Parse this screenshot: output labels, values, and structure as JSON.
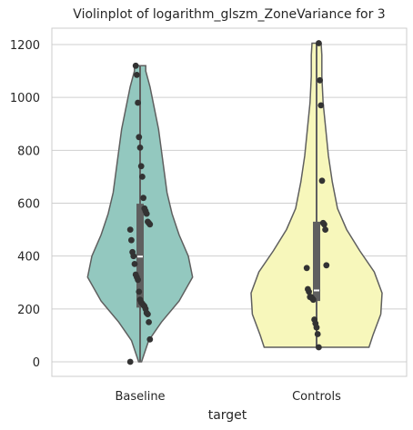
{
  "chart_data": {
    "type": "violin",
    "title": "Violinplot of logarithm_glszm_ZoneVariance for 3",
    "xlabel": "target",
    "ylabel": "",
    "categories": [
      "Baseline",
      "Controls"
    ],
    "ylim": [
      -55,
      1265
    ],
    "yticks": [
      0,
      200,
      400,
      600,
      800,
      1000,
      1200
    ],
    "grid": "horizontal",
    "colors": {
      "Baseline": "#93c8bf",
      "Controls": "#f7f7bb",
      "outline": "#5f5f5f",
      "points": "#333333",
      "box": "#5f5f5f",
      "median": "#ffffff",
      "grid": "#cfcfcf",
      "axes": "#cccccc"
    },
    "groups": [
      {
        "name": "Baseline",
        "min": 0,
        "max": 1120,
        "q1": 205,
        "median": 398,
        "q3": 598,
        "density": [
          [
            0,
            0.02
          ],
          [
            80,
            0.12
          ],
          [
            150,
            0.3
          ],
          [
            230,
            0.55
          ],
          [
            320,
            0.74
          ],
          [
            400,
            0.68
          ],
          [
            480,
            0.55
          ],
          [
            560,
            0.45
          ],
          [
            640,
            0.38
          ],
          [
            720,
            0.34
          ],
          [
            800,
            0.3
          ],
          [
            880,
            0.26
          ],
          [
            960,
            0.2
          ],
          [
            1040,
            0.14
          ],
          [
            1080,
            0.1
          ],
          [
            1100,
            0.08
          ],
          [
            1120,
            0.08
          ]
        ],
        "points": [
          0,
          85,
          150,
          180,
          185,
          200,
          210,
          215,
          220,
          225,
          235,
          265,
          310,
          320,
          330,
          370,
          400,
          415,
          460,
          500,
          520,
          525,
          530,
          560,
          570,
          580,
          620,
          700,
          740,
          810,
          850,
          980,
          1085,
          1120
        ]
      },
      {
        "name": "Controls",
        "min": 55,
        "max": 1205,
        "q1": 230,
        "median": 270,
        "q3": 530,
        "density": [
          [
            55,
            0.8
          ],
          [
            100,
            0.86
          ],
          [
            180,
            0.98
          ],
          [
            260,
            1.0
          ],
          [
            340,
            0.88
          ],
          [
            420,
            0.66
          ],
          [
            500,
            0.46
          ],
          [
            580,
            0.32
          ],
          [
            680,
            0.24
          ],
          [
            780,
            0.18
          ],
          [
            880,
            0.14
          ],
          [
            980,
            0.1
          ],
          [
            1080,
            0.08
          ],
          [
            1160,
            0.08
          ],
          [
            1205,
            0.07
          ]
        ],
        "points": [
          55,
          105,
          130,
          145,
          160,
          235,
          240,
          245,
          245,
          265,
          275,
          355,
          365,
          500,
          520,
          525,
          685,
          970,
          1065,
          1205
        ]
      }
    ]
  }
}
